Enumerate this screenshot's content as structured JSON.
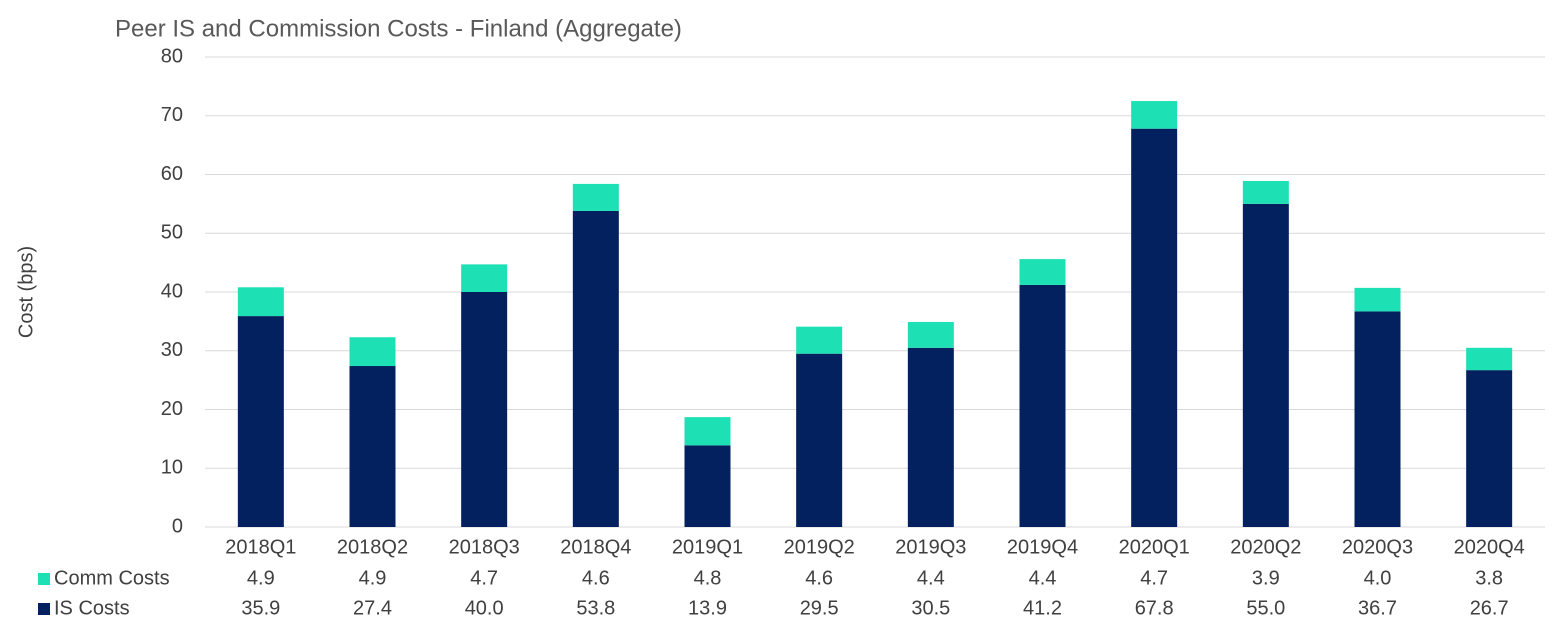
{
  "chart_data": {
    "type": "stacked_bar",
    "title": "Peer IS and Commission Costs - Finland (Aggregate)",
    "y_label": "Cost (bps)",
    "categories": [
      "2018Q1",
      "2018Q2",
      "2018Q3",
      "2018Q4",
      "2019Q1",
      "2019Q2",
      "2019Q3",
      "2019Q4",
      "2020Q1",
      "2020Q2",
      "2020Q3",
      "2020Q4"
    ],
    "series": [
      {
        "name": "Comm Costs",
        "color": "#1de0b4",
        "values": [
          4.9,
          4.9,
          4.7,
          4.6,
          4.8,
          4.6,
          4.4,
          4.4,
          4.7,
          3.9,
          4.0,
          3.8
        ],
        "value_labels": [
          "4.9",
          "4.9",
          "4.7",
          "4.6",
          "4.8",
          "4.6",
          "4.4",
          "4.4",
          "4.7",
          "3.9",
          "4.0",
          "3.8"
        ]
      },
      {
        "name": "IS Costs",
        "color": "#03215e",
        "values": [
          35.9,
          27.4,
          40.0,
          53.8,
          13.9,
          29.5,
          30.5,
          41.2,
          67.8,
          55.0,
          36.7,
          26.7
        ],
        "value_labels": [
          "35.9",
          "27.4",
          "40.0",
          "53.8",
          "13.9",
          "29.5",
          "30.5",
          "41.2",
          "67.8",
          "55.0",
          "36.7",
          "26.7"
        ]
      }
    ],
    "ylim": [
      0,
      80
    ],
    "yticks": [
      0,
      10,
      20,
      30,
      40,
      50,
      60,
      70,
      80
    ],
    "grid": true
  }
}
